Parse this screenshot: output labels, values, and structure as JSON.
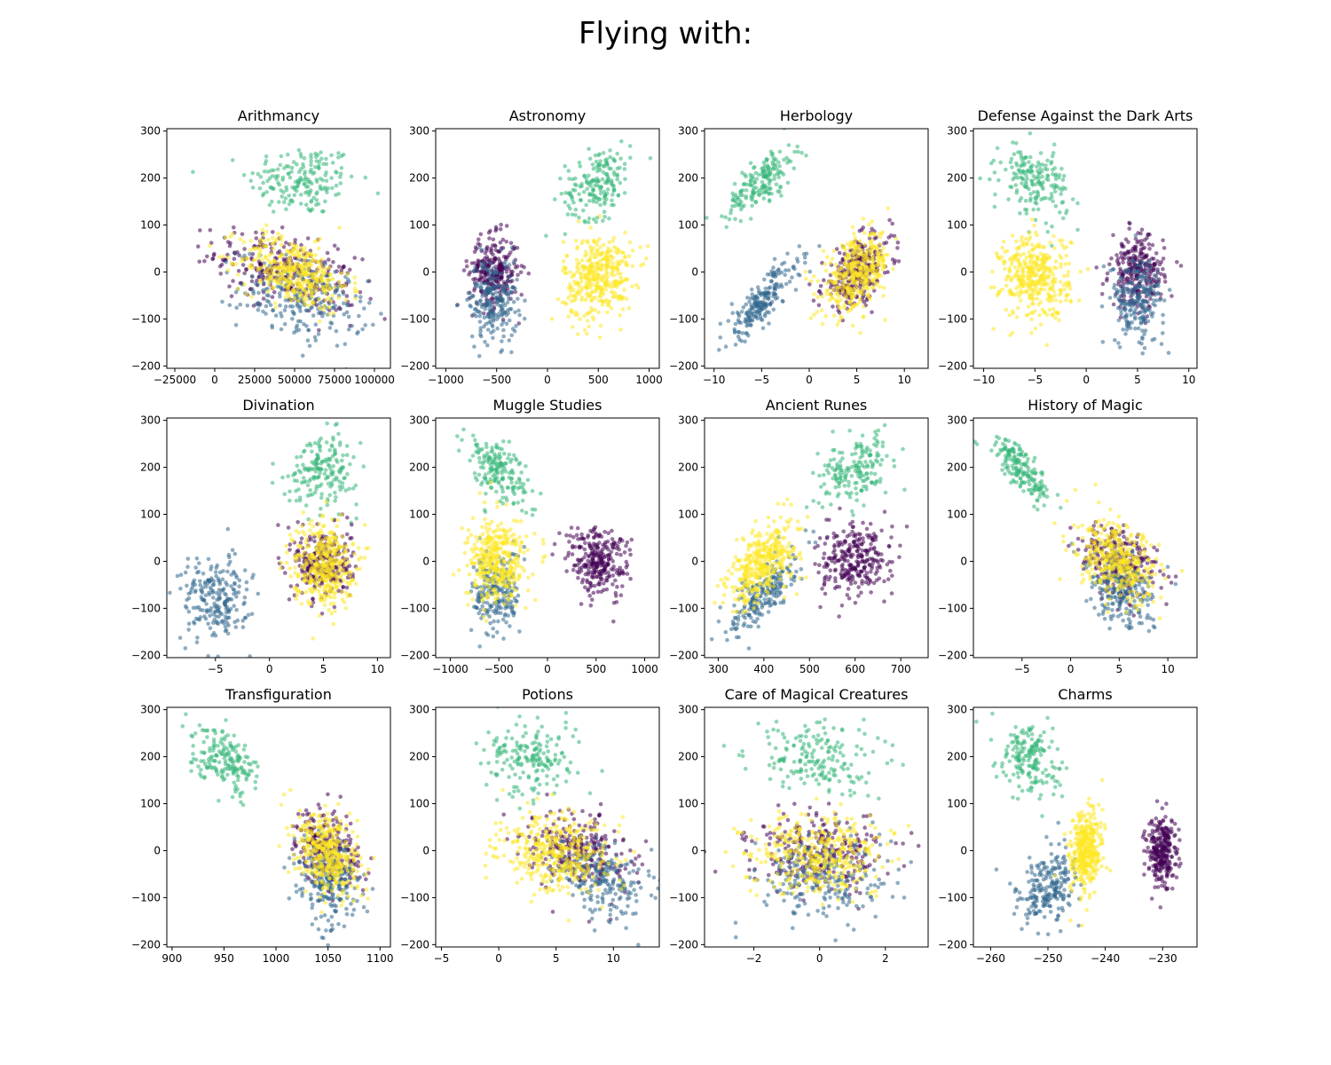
{
  "figure": {
    "title": "Flying with:"
  },
  "colors": {
    "purple": "#440154",
    "blue": "#31688e",
    "green": "#35b779",
    "yellow": "#fde725"
  },
  "chart_data": [
    {
      "type": "scatter",
      "title": "Arithmancy",
      "xlim": [
        -30000,
        110000
      ],
      "ylim": [
        -205,
        305
      ],
      "xticks": [
        {
          "v": -25000,
          "label": "−25000"
        },
        {
          "v": 0,
          "label": "0"
        },
        {
          "v": 25000,
          "label": "25000"
        },
        {
          "v": 50000,
          "label": "50000"
        },
        {
          "v": 75000,
          "label": "75000"
        },
        {
          "v": 100000,
          "label": "100000"
        }
      ],
      "yticks": [
        -200,
        -100,
        0,
        100,
        200,
        300
      ],
      "clusters": [
        {
          "color": "green",
          "cx": 55000,
          "cy": 195,
          "sx": 17000,
          "sy": 38,
          "r": 0,
          "n": 180
        },
        {
          "color": "purple",
          "cx": 45000,
          "cy": 0,
          "sx": 22000,
          "sy": 42,
          "r": -0.5,
          "n": 300
        },
        {
          "color": "blue",
          "cx": 55000,
          "cy": -60,
          "sx": 20000,
          "sy": 45,
          "r": -0.3,
          "n": 230
        },
        {
          "color": "yellow",
          "cx": 50000,
          "cy": 0,
          "sx": 17000,
          "sy": 38,
          "r": -0.4,
          "n": 380
        }
      ]
    },
    {
      "type": "scatter",
      "title": "Astronomy",
      "xlim": [
        -1100,
        1100
      ],
      "ylim": [
        -205,
        305
      ],
      "xticks": [
        {
          "v": -1000,
          "label": "−1000"
        },
        {
          "v": -500,
          "label": "−500"
        },
        {
          "v": 0,
          "label": "0"
        },
        {
          "v": 500,
          "label": "500"
        },
        {
          "v": 1000,
          "label": "1000"
        }
      ],
      "yticks": [
        -200,
        -100,
        0,
        100,
        200,
        300
      ],
      "clusters": [
        {
          "color": "green",
          "cx": 500,
          "cy": 190,
          "sx": 160,
          "sy": 38,
          "r": 0.3,
          "n": 180
        },
        {
          "color": "purple",
          "cx": -530,
          "cy": 0,
          "sx": 120,
          "sy": 38,
          "r": 0,
          "n": 280
        },
        {
          "color": "blue",
          "cx": -530,
          "cy": -60,
          "sx": 120,
          "sy": 45,
          "r": 0,
          "n": 220
        },
        {
          "color": "yellow",
          "cx": 500,
          "cy": -10,
          "sx": 170,
          "sy": 45,
          "r": 0.1,
          "n": 380
        }
      ]
    },
    {
      "type": "scatter",
      "title": "Herbology",
      "xlim": [
        -11,
        12.5
      ],
      "ylim": [
        -205,
        305
      ],
      "xticks": [
        {
          "v": -10,
          "label": "−10"
        },
        {
          "v": -5,
          "label": "−5"
        },
        {
          "v": 0,
          "label": "0"
        },
        {
          "v": 5,
          "label": "5"
        },
        {
          "v": 10,
          "label": "10"
        }
      ],
      "yticks": [
        -200,
        -100,
        0,
        100,
        200,
        300
      ],
      "clusters": [
        {
          "color": "green",
          "cx": -5,
          "cy": 195,
          "sx": 1.8,
          "sy": 38,
          "r": 0.75,
          "n": 180
        },
        {
          "color": "blue",
          "cx": -5,
          "cy": -65,
          "sx": 2.0,
          "sy": 45,
          "r": 0.85,
          "n": 220
        },
        {
          "color": "purple",
          "cx": 5,
          "cy": 0,
          "sx": 1.8,
          "sy": 38,
          "r": 0.5,
          "n": 280
        },
        {
          "color": "yellow",
          "cx": 5,
          "cy": -5,
          "sx": 1.8,
          "sy": 42,
          "r": 0.45,
          "n": 380
        }
      ]
    },
    {
      "type": "scatter",
      "title": "Defense Against the Dark Arts",
      "xlim": [
        -11,
        10.8
      ],
      "ylim": [
        -205,
        305
      ],
      "xticks": [
        {
          "v": -10,
          "label": "−10"
        },
        {
          "v": -5,
          "label": "−5"
        },
        {
          "v": 0,
          "label": "0"
        },
        {
          "v": 5,
          "label": "5"
        },
        {
          "v": 10,
          "label": "10"
        }
      ],
      "yticks": [
        -200,
        -100,
        0,
        100,
        200,
        300
      ],
      "clusters": [
        {
          "color": "green",
          "cx": -5,
          "cy": 195,
          "sx": 1.6,
          "sy": 38,
          "r": -0.3,
          "n": 180
        },
        {
          "color": "yellow",
          "cx": -5,
          "cy": -10,
          "sx": 1.7,
          "sy": 45,
          "r": 0,
          "n": 380
        },
        {
          "color": "purple",
          "cx": 5,
          "cy": 0,
          "sx": 1.3,
          "sy": 38,
          "r": 0,
          "n": 280
        },
        {
          "color": "blue",
          "cx": 5,
          "cy": -60,
          "sx": 1.3,
          "sy": 45,
          "r": 0,
          "n": 220
        }
      ]
    },
    {
      "type": "scatter",
      "title": "Divination",
      "xlim": [
        -9.5,
        11.2
      ],
      "ylim": [
        -205,
        305
      ],
      "xticks": [
        {
          "v": -5,
          "label": "−5"
        },
        {
          "v": 0,
          "label": "0"
        },
        {
          "v": 5,
          "label": "5"
        },
        {
          "v": 10,
          "label": "10"
        }
      ],
      "yticks": [
        -200,
        -100,
        0,
        100,
        200,
        300
      ],
      "clusters": [
        {
          "color": "green",
          "cx": 5,
          "cy": 195,
          "sx": 1.6,
          "sy": 38,
          "r": 0,
          "n": 180
        },
        {
          "color": "blue",
          "cx": -5,
          "cy": -80,
          "sx": 1.6,
          "sy": 45,
          "r": 0,
          "n": 220
        },
        {
          "color": "purple",
          "cx": 5,
          "cy": -5,
          "sx": 1.3,
          "sy": 38,
          "r": 0,
          "n": 280
        },
        {
          "color": "yellow",
          "cx": 5,
          "cy": -5,
          "sx": 1.4,
          "sy": 45,
          "r": 0,
          "n": 380
        }
      ]
    },
    {
      "type": "scatter",
      "title": "Muggle Studies",
      "xlim": [
        -1150,
        1150
      ],
      "ylim": [
        -205,
        305
      ],
      "xticks": [
        {
          "v": -1000,
          "label": "−1000"
        },
        {
          "v": -500,
          "label": "−500"
        },
        {
          "v": 0,
          "label": "0"
        },
        {
          "v": 500,
          "label": "500"
        },
        {
          "v": 1000,
          "label": "1000"
        }
      ],
      "yticks": [
        -200,
        -100,
        0,
        100,
        200,
        300
      ],
      "clusters": [
        {
          "color": "green",
          "cx": -520,
          "cy": 195,
          "sx": 170,
          "sy": 38,
          "r": -0.5,
          "n": 180
        },
        {
          "color": "purple",
          "cx": 520,
          "cy": 0,
          "sx": 160,
          "sy": 36,
          "r": -0.2,
          "n": 280
        },
        {
          "color": "blue",
          "cx": -520,
          "cy": -65,
          "sx": 120,
          "sy": 45,
          "r": 0,
          "n": 220
        },
        {
          "color": "yellow",
          "cx": -520,
          "cy": 0,
          "sx": 150,
          "sy": 45,
          "r": 0.1,
          "n": 380
        }
      ]
    },
    {
      "type": "scatter",
      "title": "Ancient Runes",
      "xlim": [
        270,
        760
      ],
      "ylim": [
        -205,
        305
      ],
      "xticks": [
        {
          "v": 300,
          "label": "300"
        },
        {
          "v": 400,
          "label": "400"
        },
        {
          "v": 500,
          "label": "500"
        },
        {
          "v": 600,
          "label": "600"
        },
        {
          "v": 700,
          "label": "700"
        }
      ],
      "yticks": [
        -200,
        -100,
        0,
        100,
        200,
        300
      ],
      "clusters": [
        {
          "color": "green",
          "cx": 600,
          "cy": 195,
          "sx": 40,
          "sy": 38,
          "r": 0.5,
          "n": 180
        },
        {
          "color": "purple",
          "cx": 600,
          "cy": 0,
          "sx": 40,
          "sy": 38,
          "r": 0,
          "n": 280
        },
        {
          "color": "blue",
          "cx": 400,
          "cy": -65,
          "sx": 35,
          "sy": 42,
          "r": 0.75,
          "n": 220
        },
        {
          "color": "yellow",
          "cx": 400,
          "cy": 0,
          "sx": 38,
          "sy": 45,
          "r": 0.55,
          "n": 380
        }
      ]
    },
    {
      "type": "scatter",
      "title": "History of Magic",
      "xlim": [
        -10,
        13
      ],
      "ylim": [
        -205,
        305
      ],
      "xticks": [
        {
          "v": -5,
          "label": "−5"
        },
        {
          "v": 0,
          "label": "0"
        },
        {
          "v": 5,
          "label": "5"
        },
        {
          "v": 10,
          "label": "10"
        }
      ],
      "yticks": [
        -200,
        -100,
        0,
        100,
        200,
        300
      ],
      "clusters": [
        {
          "color": "green",
          "cx": -5,
          "cy": 195,
          "sx": 1.5,
          "sy": 36,
          "r": -0.8,
          "n": 180
        },
        {
          "color": "purple",
          "cx": 5,
          "cy": 0,
          "sx": 1.9,
          "sy": 38,
          "r": -0.3,
          "n": 280
        },
        {
          "color": "blue",
          "cx": 5,
          "cy": -60,
          "sx": 1.8,
          "sy": 42,
          "r": -0.4,
          "n": 220
        },
        {
          "color": "yellow",
          "cx": 5,
          "cy": -5,
          "sx": 2.1,
          "sy": 42,
          "r": -0.35,
          "n": 380
        }
      ]
    },
    {
      "type": "scatter",
      "title": "Transfiguration",
      "xlim": [
        895,
        1110
      ],
      "ylim": [
        -205,
        305
      ],
      "xticks": [
        {
          "v": 900,
          "label": "900"
        },
        {
          "v": 950,
          "label": "950"
        },
        {
          "v": 1000,
          "label": "1000"
        },
        {
          "v": 1050,
          "label": "1050"
        },
        {
          "v": 1100,
          "label": "1100"
        }
      ],
      "yticks": [
        -200,
        -100,
        0,
        100,
        200,
        300
      ],
      "clusters": [
        {
          "color": "green",
          "cx": 950,
          "cy": 195,
          "sx": 16,
          "sy": 36,
          "r": -0.5,
          "n": 180
        },
        {
          "color": "purple",
          "cx": 1050,
          "cy": 0,
          "sx": 15,
          "sy": 40,
          "r": -0.3,
          "n": 280
        },
        {
          "color": "blue",
          "cx": 1050,
          "cy": -65,
          "sx": 15,
          "sy": 45,
          "r": -0.2,
          "n": 220
        },
        {
          "color": "yellow",
          "cx": 1050,
          "cy": -5,
          "sx": 15,
          "sy": 45,
          "r": -0.3,
          "n": 380
        }
      ]
    },
    {
      "type": "scatter",
      "title": "Potions",
      "xlim": [
        -5.5,
        14
      ],
      "ylim": [
        -205,
        305
      ],
      "xticks": [
        {
          "v": -5,
          "label": "−5"
        },
        {
          "v": 0,
          "label": "0"
        },
        {
          "v": 5,
          "label": "5"
        },
        {
          "v": 10,
          "label": "10"
        }
      ],
      "yticks": [
        -200,
        -100,
        0,
        100,
        200,
        300
      ],
      "clusters": [
        {
          "color": "green",
          "cx": 3,
          "cy": 195,
          "sx": 2.0,
          "sy": 38,
          "r": 0,
          "n": 180
        },
        {
          "color": "purple",
          "cx": 7,
          "cy": 0,
          "sx": 2.1,
          "sy": 38,
          "r": -0.2,
          "n": 280
        },
        {
          "color": "blue",
          "cx": 9,
          "cy": -60,
          "sx": 2.0,
          "sy": 42,
          "r": -0.3,
          "n": 220
        },
        {
          "color": "yellow",
          "cx": 5,
          "cy": -5,
          "sx": 2.4,
          "sy": 42,
          "r": -0.2,
          "n": 380
        }
      ]
    },
    {
      "type": "scatter",
      "title": "Care of Magical Creatures",
      "xlim": [
        -3.5,
        3.3
      ],
      "ylim": [
        -205,
        305
      ],
      "xticks": [
        {
          "v": -2,
          "label": "−2"
        },
        {
          "v": 0,
          "label": "0"
        },
        {
          "v": 2,
          "label": "2"
        }
      ],
      "yticks": [
        -200,
        -100,
        0,
        100,
        200,
        300
      ],
      "clusters": [
        {
          "color": "green",
          "cx": 0,
          "cy": 195,
          "sx": 1.0,
          "sy": 38,
          "r": 0,
          "n": 180
        },
        {
          "color": "purple",
          "cx": 0,
          "cy": -5,
          "sx": 1.0,
          "sy": 38,
          "r": 0,
          "n": 280
        },
        {
          "color": "blue",
          "cx": 0,
          "cy": -60,
          "sx": 1.0,
          "sy": 45,
          "r": 0,
          "n": 220
        },
        {
          "color": "yellow",
          "cx": 0,
          "cy": -5,
          "sx": 1.0,
          "sy": 42,
          "r": 0,
          "n": 380
        }
      ]
    },
    {
      "type": "scatter",
      "title": "Charms",
      "xlim": [
        -263,
        -224
      ],
      "ylim": [
        -205,
        305
      ],
      "xticks": [
        {
          "v": -260,
          "label": "−260"
        },
        {
          "v": -250,
          "label": "−250"
        },
        {
          "v": -240,
          "label": "−240"
        },
        {
          "v": -230,
          "label": "−230"
        }
      ],
      "yticks": [
        -200,
        -100,
        0,
        100,
        200,
        300
      ],
      "clusters": [
        {
          "color": "green",
          "cx": -253,
          "cy": 195,
          "sx": 2.6,
          "sy": 38,
          "r": -0.2,
          "n": 180
        },
        {
          "color": "blue",
          "cx": -250,
          "cy": -80,
          "sx": 2.6,
          "sy": 42,
          "r": 0.3,
          "n": 220
        },
        {
          "color": "yellow",
          "cx": -243.5,
          "cy": -5,
          "sx": 1.4,
          "sy": 45,
          "r": 0.2,
          "n": 380
        },
        {
          "color": "purple",
          "cx": -230,
          "cy": -5,
          "sx": 1.3,
          "sy": 38,
          "r": 0,
          "n": 280
        }
      ]
    }
  ]
}
